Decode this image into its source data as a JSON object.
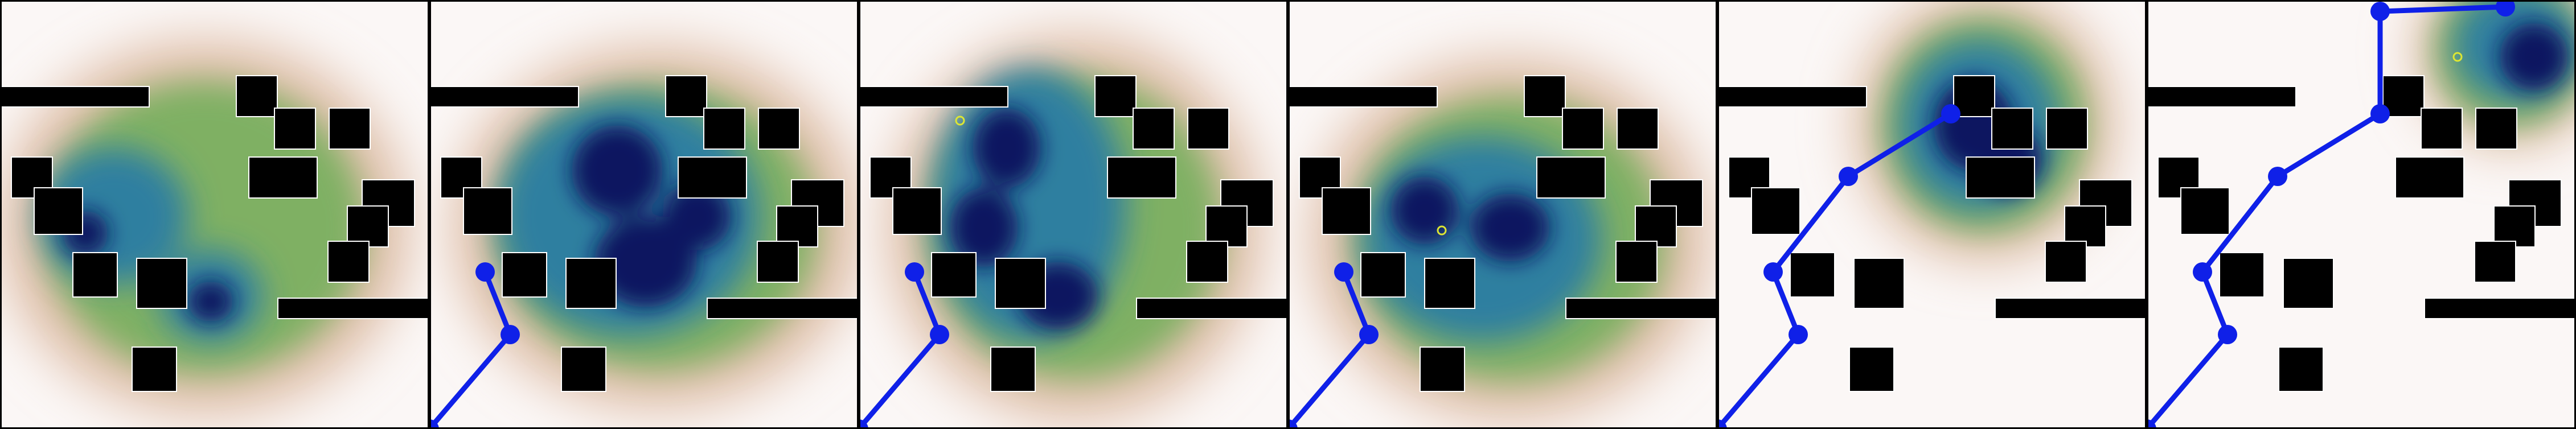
{
  "figure": {
    "panel_count": 6,
    "colors": {
      "background": "#fbf7f6",
      "border": "#000000",
      "obstacle": "#000000",
      "obstacle_outline": "#ffffff",
      "path": "#0f20e8",
      "marker": "#dde633",
      "density_low": "#d9b49a",
      "density_mid": "#7fb063",
      "density_high": "#2e7fa0",
      "density_peak": "#0b1260"
    },
    "colormap": "gist_earth_r",
    "legend": "none",
    "axes_visible": false
  }
}
